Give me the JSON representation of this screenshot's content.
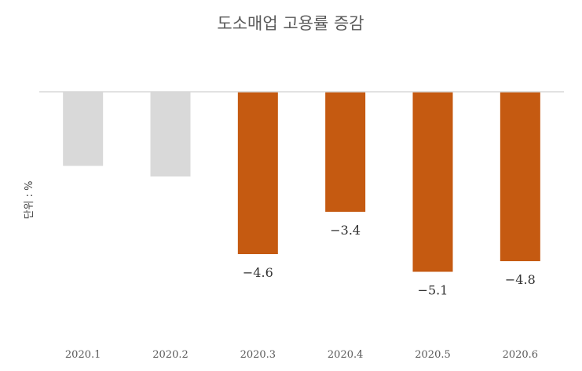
{
  "chart_data": {
    "type": "bar",
    "title": "도소매업 고용률 증감",
    "ylabel": "단위 : %",
    "xlabel": "",
    "categories": [
      "2020.1",
      "2020.2",
      "2020.3",
      "2020.4",
      "2020.5",
      "2020.6"
    ],
    "values": [
      -2.1,
      -2.4,
      -4.6,
      -3.4,
      -5.1,
      -4.8
    ],
    "data_labels": [
      "",
      "",
      "−4.6",
      "−3.4",
      "−5.1",
      "−4.8"
    ],
    "ylim": [
      -6,
      0
    ],
    "grid": false,
    "legend": "none",
    "colors": {
      "muted": "#d9d9d9",
      "highlight": "#c55a11",
      "baseline": "#d9d9d9"
    },
    "bar_colors": [
      "muted",
      "muted",
      "highlight",
      "highlight",
      "highlight",
      "highlight"
    ]
  }
}
